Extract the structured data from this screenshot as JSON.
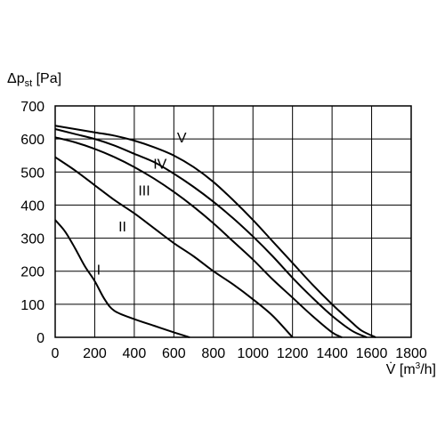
{
  "chart_data": {
    "type": "line",
    "title": "",
    "ylabel_main": "Δp",
    "ylabel_sub": "st",
    "ylabel_unit": " [Pa]",
    "xlabel_main": "V̇ [m",
    "xlabel_sup": "3",
    "xlabel_unit": "/h]",
    "xlim": [
      0,
      1800
    ],
    "ylim": [
      0,
      700
    ],
    "x_ticks": [
      0,
      200,
      400,
      600,
      800,
      1000,
      1200,
      1400,
      1600,
      1800
    ],
    "y_ticks": [
      0,
      100,
      200,
      300,
      400,
      500,
      600,
      700
    ],
    "grid": true,
    "series": [
      {
        "name": "I",
        "points": [
          [
            0,
            355
          ],
          [
            50,
            320
          ],
          [
            100,
            270
          ],
          [
            150,
            215
          ],
          [
            200,
            170
          ],
          [
            250,
            115
          ],
          [
            300,
            80
          ],
          [
            400,
            55
          ],
          [
            500,
            35
          ],
          [
            600,
            15
          ],
          [
            680,
            0
          ]
        ]
      },
      {
        "name": "II",
        "points": [
          [
            0,
            545
          ],
          [
            100,
            505
          ],
          [
            200,
            460
          ],
          [
            300,
            415
          ],
          [
            400,
            375
          ],
          [
            500,
            330
          ],
          [
            600,
            285
          ],
          [
            700,
            245
          ],
          [
            800,
            200
          ],
          [
            900,
            160
          ],
          [
            1000,
            115
          ],
          [
            1100,
            65
          ],
          [
            1200,
            0
          ]
        ]
      },
      {
        "name": "III",
        "points": [
          [
            0,
            605
          ],
          [
            100,
            590
          ],
          [
            200,
            570
          ],
          [
            300,
            545
          ],
          [
            400,
            515
          ],
          [
            500,
            480
          ],
          [
            600,
            440
          ],
          [
            700,
            395
          ],
          [
            800,
            345
          ],
          [
            900,
            290
          ],
          [
            1000,
            235
          ],
          [
            1100,
            175
          ],
          [
            1200,
            120
          ],
          [
            1300,
            65
          ],
          [
            1400,
            15
          ],
          [
            1450,
            0
          ]
        ]
      },
      {
        "name": "IV",
        "points": [
          [
            0,
            630
          ],
          [
            100,
            615
          ],
          [
            200,
            600
          ],
          [
            300,
            580
          ],
          [
            400,
            555
          ],
          [
            500,
            530
          ],
          [
            600,
            495
          ],
          [
            700,
            455
          ],
          [
            800,
            410
          ],
          [
            900,
            360
          ],
          [
            1000,
            305
          ],
          [
            1100,
            245
          ],
          [
            1200,
            180
          ],
          [
            1300,
            120
          ],
          [
            1400,
            65
          ],
          [
            1500,
            20
          ],
          [
            1575,
            0
          ]
        ]
      },
      {
        "name": "V",
        "points": [
          [
            0,
            640
          ],
          [
            100,
            630
          ],
          [
            200,
            620
          ],
          [
            300,
            610
          ],
          [
            400,
            595
          ],
          [
            500,
            575
          ],
          [
            600,
            550
          ],
          [
            700,
            515
          ],
          [
            800,
            470
          ],
          [
            900,
            415
          ],
          [
            1000,
            355
          ],
          [
            1100,
            290
          ],
          [
            1200,
            225
          ],
          [
            1300,
            160
          ],
          [
            1400,
            100
          ],
          [
            1500,
            45
          ],
          [
            1550,
            20
          ],
          [
            1620,
            0
          ]
        ]
      }
    ],
    "curve_labels": [
      {
        "text": "V",
        "x": 640,
        "y": 590
      },
      {
        "text": "IV",
        "x": 530,
        "y": 510
      },
      {
        "text": "III",
        "x": 450,
        "y": 430
      },
      {
        "text": "II",
        "x": 340,
        "y": 320
      },
      {
        "text": "I",
        "x": 220,
        "y": 190
      }
    ]
  }
}
